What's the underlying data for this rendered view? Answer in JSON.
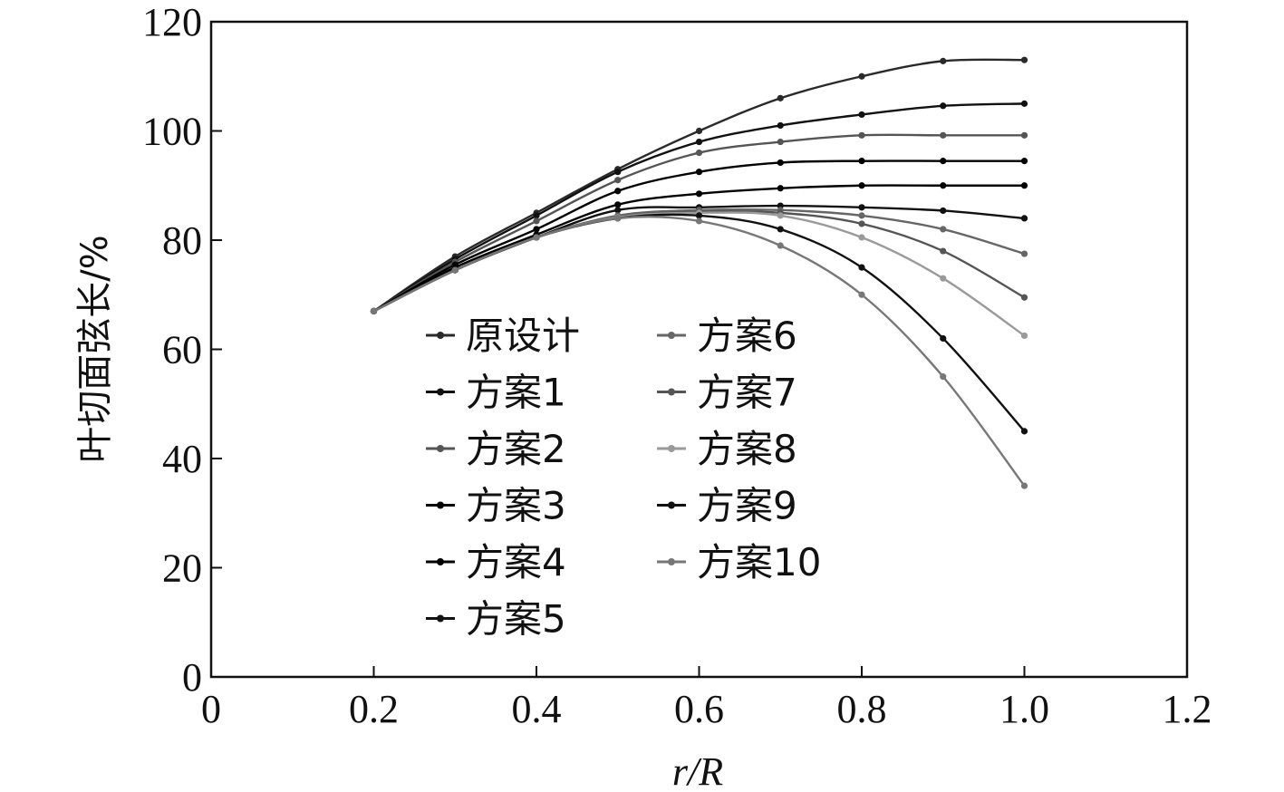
{
  "chart_data": {
    "type": "line",
    "xlabel": "r/R",
    "ylabel": "叶切面弦长/%",
    "xlim": [
      0,
      1.2
    ],
    "ylim": [
      0,
      120
    ],
    "xticks": [
      "0",
      "0.2",
      "0.4",
      "0.6",
      "0.8",
      "1.0",
      "1.2"
    ],
    "yticks": [
      "0",
      "20",
      "40",
      "60",
      "80",
      "100",
      "120"
    ],
    "x": [
      0.2,
      0.3,
      0.4,
      0.5,
      0.6,
      0.7,
      0.8,
      0.9,
      1.0
    ],
    "legend_position": "center, inside plot",
    "grid": false,
    "series": [
      {
        "name": "原设计",
        "color": "#2a2a2a",
        "values": [
          67,
          77,
          85,
          93,
          100,
          106,
          110,
          112.8,
          113
        ]
      },
      {
        "name": "方案1",
        "color": "#111111",
        "values": [
          67,
          76.5,
          84.5,
          92.5,
          98,
          101,
          103,
          104.6,
          105
        ]
      },
      {
        "name": "方案2",
        "color": "#555555",
        "values": [
          67,
          76,
          83.5,
          91,
          96,
          98,
          99.2,
          99.2,
          99.2
        ]
      },
      {
        "name": "方案3",
        "color": "#000000",
        "values": [
          67,
          75.5,
          82,
          89,
          92.5,
          94.2,
          94.5,
          94.5,
          94.5
        ]
      },
      {
        "name": "方案4",
        "color": "#000000",
        "values": [
          67,
          75,
          81,
          86.5,
          88.5,
          89.5,
          90,
          90,
          90
        ]
      },
      {
        "name": "方案5",
        "color": "#111111",
        "values": [
          67,
          74.5,
          80.5,
          85.5,
          86,
          86.3,
          86,
          85.4,
          84
        ]
      },
      {
        "name": "方案6",
        "color": "#666666",
        "values": [
          67,
          74.5,
          80.5,
          84.5,
          85.5,
          85.5,
          84.5,
          82,
          77.5
        ]
      },
      {
        "name": "方案7",
        "color": "#555555",
        "values": [
          67,
          74.5,
          80.5,
          84.3,
          85.2,
          85,
          83,
          78,
          69.5
        ]
      },
      {
        "name": "方案8",
        "color": "#9a9a9a",
        "values": [
          67,
          74.5,
          80.5,
          84.2,
          85,
          84.5,
          80.5,
          73,
          62.5
        ]
      },
      {
        "name": "方案9",
        "color": "#111111",
        "values": [
          67,
          74.5,
          80.5,
          84,
          84.5,
          82,
          75,
          62,
          45
        ]
      },
      {
        "name": "方案10",
        "color": "#777777",
        "values": [
          67,
          74.5,
          80.5,
          84,
          83.5,
          79,
          70,
          55,
          35
        ]
      }
    ]
  }
}
